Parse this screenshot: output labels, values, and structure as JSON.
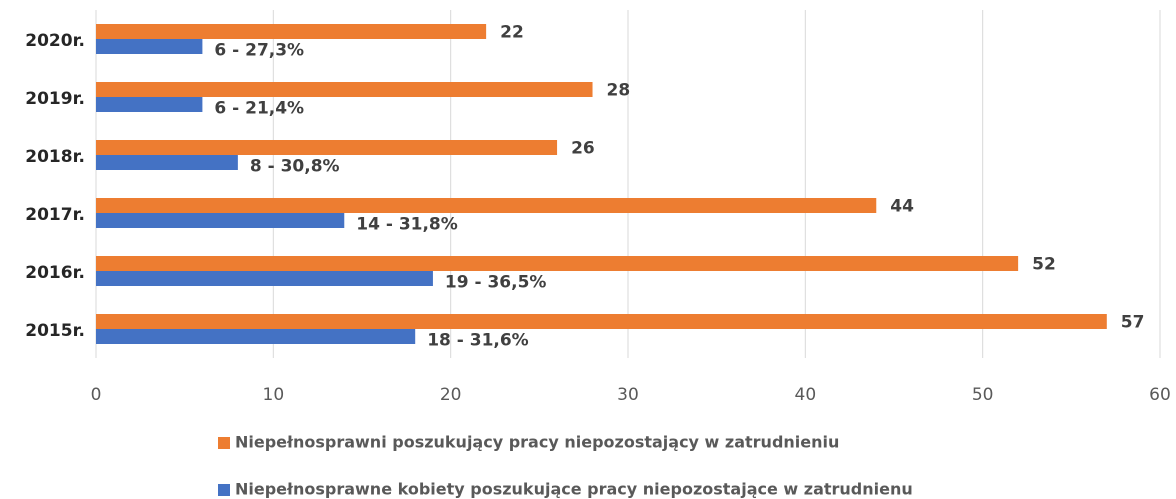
{
  "chart_data": {
    "type": "bar",
    "orientation": "horizontal",
    "categories": [
      "2020r.",
      "2019r.",
      "2018r.",
      "2017r.",
      "2016r.",
      "2015r."
    ],
    "series": [
      {
        "name": "Niepełnosprawni poszukujący pracy niepozostający w zatrudnieniu",
        "color": "#ed7d31",
        "values": [
          22,
          28,
          26,
          44,
          52,
          57
        ]
      },
      {
        "name": "Niepełnosprawne kobiety poszukujące pracy niepozostające w zatrudnienu",
        "color": "#4472c4",
        "values": [
          6,
          6,
          8,
          14,
          19,
          18
        ],
        "value_labels": [
          "6 - 27,3%",
          "6 - 21,4%",
          "8 - 30,8%",
          "14 - 31,8%",
          "19 - 36,5%",
          "18 - 31,6%"
        ]
      }
    ],
    "xlim": [
      0,
      60
    ],
    "xticks": [
      0,
      10,
      20,
      30,
      40,
      50,
      60
    ],
    "grid": true,
    "legend": "bottom"
  }
}
